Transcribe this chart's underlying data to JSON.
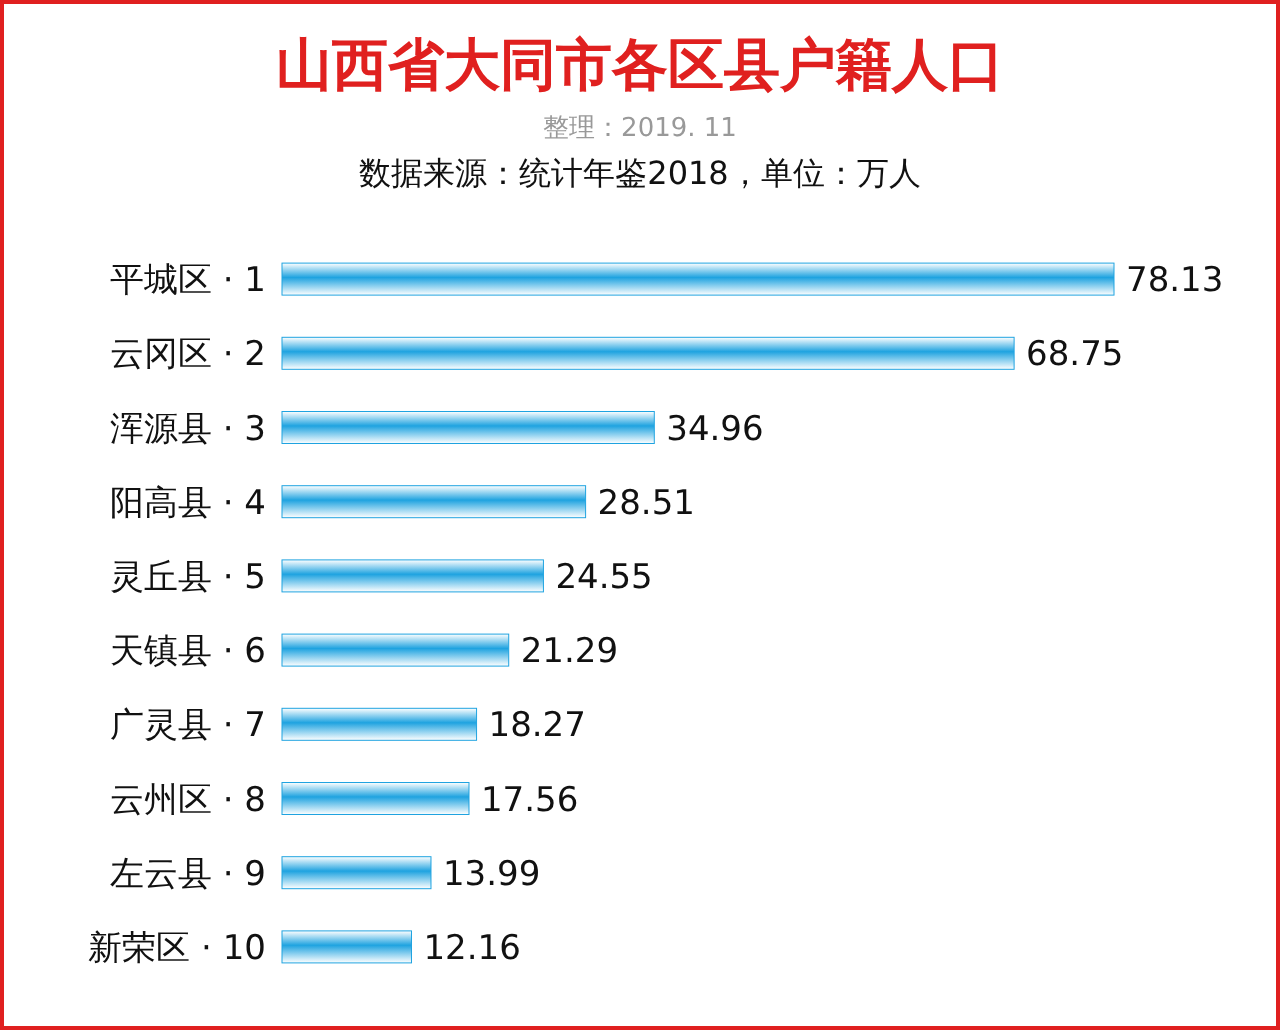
{
  "chart_data": {
    "type": "bar",
    "orientation": "horizontal",
    "title": "山西省大同市各区县户籍人口",
    "subtitle": "整理：2019. 11",
    "annotations": [
      "数据来源：统计年鉴2018，单位：万人"
    ],
    "categories": [
      "平城区 · 1",
      "云冈区 · 2",
      "浑源县 · 3",
      "阳高县 · 4",
      "灵丘县 · 5",
      "天镇县 · 6",
      "广灵县 · 7",
      "云州区 · 8",
      "左云县 · 9",
      "新荣区 · 10"
    ],
    "values": [
      78.13,
      68.75,
      34.96,
      28.51,
      24.55,
      21.29,
      18.27,
      17.56,
      13.99,
      12.16
    ],
    "color": "#1fa3e0",
    "data_labels": true
  }
}
